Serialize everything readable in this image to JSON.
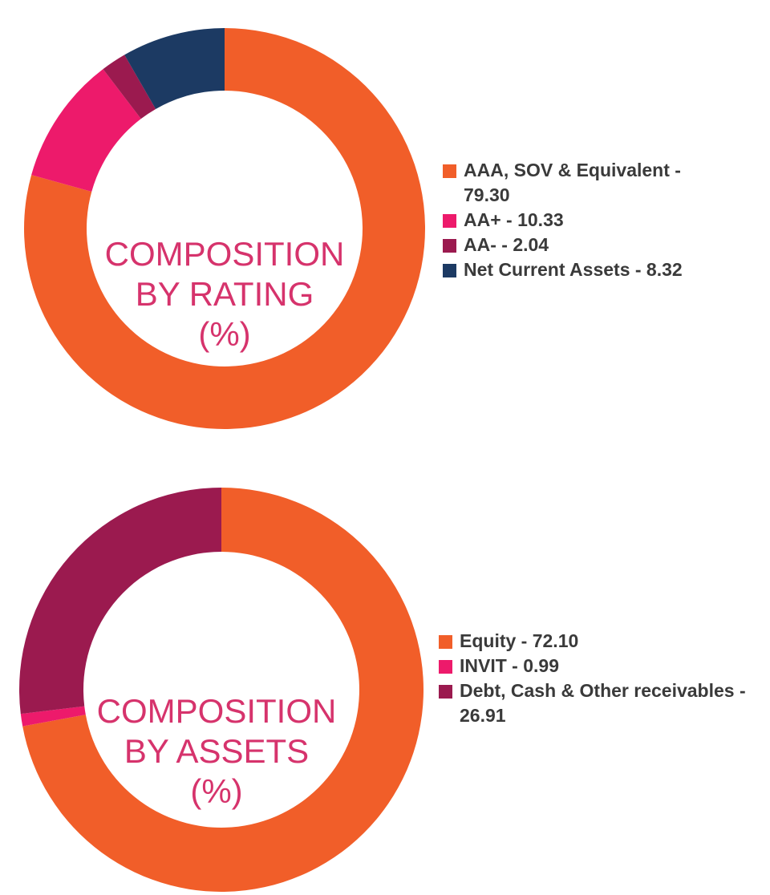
{
  "chart_data": [
    {
      "type": "donut",
      "title_lines": [
        "COMPOSITION",
        "BY RATING",
        "(%)"
      ],
      "legend": [
        {
          "label": "AAA, SOV & Equivalent - 79.30",
          "color": "#f15e29"
        },
        {
          "label": "AA+ - 10.33",
          "color": "#ed1a6b"
        },
        {
          "label": "AA- - 2.04",
          "color": "#9b1a4f"
        },
        {
          "label": "Net Current Assets - 8.32",
          "color": "#1c3a63"
        }
      ],
      "categories": [
        "AAA, SOV & Equivalent",
        "AA+",
        "AA-",
        "Net Current Assets"
      ],
      "values": [
        79.3,
        10.33,
        2.04,
        8.32
      ],
      "colors": [
        "#f15e29",
        "#ed1a6b",
        "#9b1a4f",
        "#1c3a63"
      ]
    },
    {
      "type": "donut",
      "title_lines": [
        "COMPOSITION",
        "BY ASSETS",
        "(%)"
      ],
      "legend": [
        {
          "label": "Equity - 72.10",
          "color": "#f15e29"
        },
        {
          "label": "INVIT - 0.99",
          "color": "#ed1a6b"
        },
        {
          "label": "Debt, Cash & Other receivables - 26.91",
          "color": "#9b1a4f"
        }
      ],
      "categories": [
        "Equity",
        "INVIT",
        "Debt, Cash & Other receivables"
      ],
      "values": [
        72.1,
        0.99,
        26.91
      ],
      "colors": [
        "#f15e29",
        "#ed1a6b",
        "#9b1a4f"
      ]
    }
  ]
}
